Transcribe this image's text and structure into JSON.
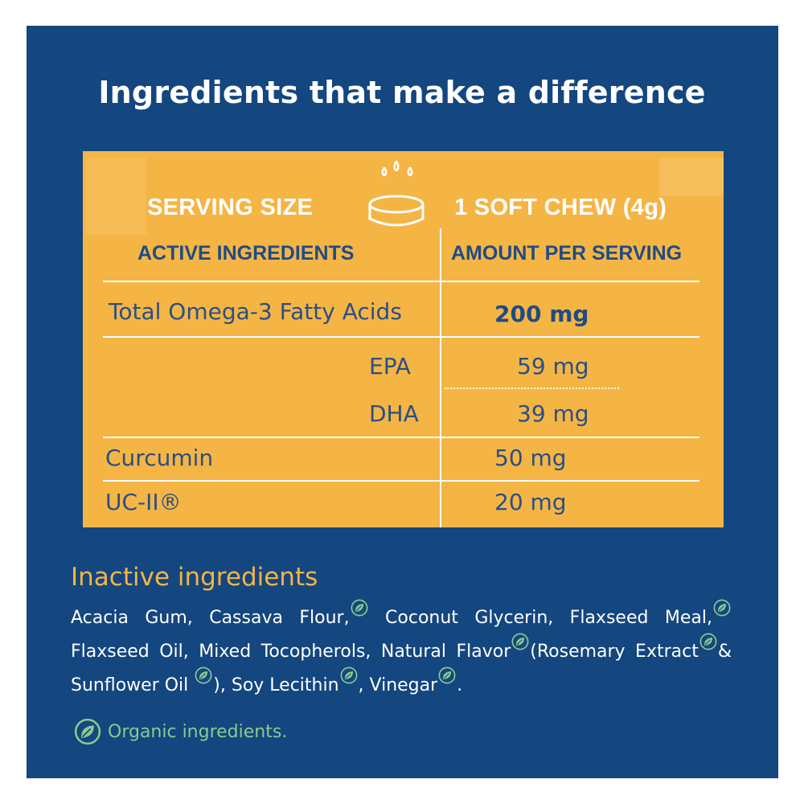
{
  "headline": "Ingredients that make a difference",
  "table": {
    "serving_label": "SERVING SIZE",
    "serving_value": "1 SOFT CHEW (4g)",
    "col_left": "ACTIVE INGREDIENTS",
    "col_right": "AMOUNT PER SERVING",
    "rows": [
      {
        "name": "Total Omega-3 Fatty Acids",
        "amount": "200 mg"
      },
      {
        "name": "EPA",
        "amount": "59 mg"
      },
      {
        "name": "DHA",
        "amount": "39 mg"
      },
      {
        "name": "Curcumin",
        "amount": "50 mg"
      },
      {
        "name": "UC-II®",
        "amount": "20 mg"
      }
    ]
  },
  "inactive": {
    "title": "Inactive ingredients",
    "items": {
      "acacia": "Acacia Gum, Cassava Flour,",
      "glycerin": "Coconut Glycerin, Flaxseed Meal,",
      "oil": "Flaxseed Oil, Mixed Tocopherols, Natural Flavor",
      "rosemary": "(Rosemary Extract",
      "sunflower": "& Sunflower Oil",
      "lecithin": "), Soy Lecithin",
      "vinegar": ", Vinegar",
      "end": "."
    }
  },
  "legend": {
    "label": "Organic ingredients.",
    "icon": "organic-leaf-icon"
  },
  "colors": {
    "panel": "#14467f",
    "card": "#f4b545",
    "title_accent": "#f4b545",
    "organic": "#8cc98e",
    "table_text": "#1f4b86"
  }
}
